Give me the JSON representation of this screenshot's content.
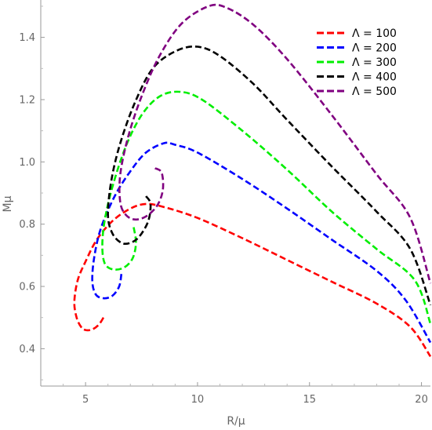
{
  "chart_data": {
    "type": "line",
    "title": "",
    "xlabel": "R/μ",
    "ylabel": "Mμ",
    "xlim": [
      3,
      20.4
    ],
    "ylim": [
      0.28,
      1.52
    ],
    "x_ticks": [
      5,
      10,
      15,
      20
    ],
    "y_ticks": [
      0.4,
      0.6,
      0.8,
      1.0,
      1.2,
      1.4
    ],
    "x_tick_labels": [
      "5",
      "10",
      "15",
      "20"
    ],
    "y_tick_labels": [
      "0.4",
      "0.6",
      "0.8",
      "1.0",
      "1.2",
      "1.4"
    ],
    "grid": false,
    "line_style": "dashed",
    "legend_position": "top-right",
    "series": [
      {
        "name": "Λ = 100",
        "color": "#ff0000",
        "points": [
          [
            5.8,
            0.5
          ],
          [
            5.6,
            0.478
          ],
          [
            5.3,
            0.462
          ],
          [
            5.0,
            0.46
          ],
          [
            4.8,
            0.47
          ],
          [
            4.6,
            0.5
          ],
          [
            4.5,
            0.55
          ],
          [
            4.65,
            0.62
          ],
          [
            5.0,
            0.68
          ],
          [
            5.5,
            0.75
          ],
          [
            6.2,
            0.81
          ],
          [
            7.0,
            0.85
          ],
          [
            7.7,
            0.865
          ],
          [
            8.5,
            0.855
          ],
          [
            10.0,
            0.82
          ],
          [
            12.0,
            0.755
          ],
          [
            14.0,
            0.685
          ],
          [
            16.0,
            0.615
          ],
          [
            18.0,
            0.545
          ],
          [
            19.5,
            0.47
          ],
          [
            20.4,
            0.375
          ]
        ]
      },
      {
        "name": "Λ = 200",
        "color": "#0000ff",
        "points": [
          [
            6.6,
            0.64
          ],
          [
            6.5,
            0.6
          ],
          [
            6.2,
            0.57
          ],
          [
            5.8,
            0.562
          ],
          [
            5.45,
            0.575
          ],
          [
            5.3,
            0.62
          ],
          [
            5.4,
            0.7
          ],
          [
            5.7,
            0.79
          ],
          [
            6.3,
            0.89
          ],
          [
            7.0,
            0.97
          ],
          [
            7.7,
            1.03
          ],
          [
            8.5,
            1.06
          ],
          [
            9.0,
            1.055
          ],
          [
            10.0,
            1.03
          ],
          [
            12.0,
            0.945
          ],
          [
            14.0,
            0.85
          ],
          [
            16.0,
            0.75
          ],
          [
            18.0,
            0.65
          ],
          [
            19.3,
            0.555
          ],
          [
            20.4,
            0.42
          ]
        ]
      },
      {
        "name": "Λ = 300",
        "color": "#00ee00",
        "points": [
          [
            7.15,
            0.79
          ],
          [
            7.25,
            0.74
          ],
          [
            7.1,
            0.69
          ],
          [
            6.7,
            0.66
          ],
          [
            6.2,
            0.655
          ],
          [
            5.85,
            0.675
          ],
          [
            5.75,
            0.73
          ],
          [
            5.85,
            0.81
          ],
          [
            6.2,
            0.92
          ],
          [
            6.8,
            1.05
          ],
          [
            7.5,
            1.15
          ],
          [
            8.3,
            1.21
          ],
          [
            9.2,
            1.225
          ],
          [
            10.2,
            1.2
          ],
          [
            12.0,
            1.1
          ],
          [
            14.0,
            0.975
          ],
          [
            16.0,
            0.84
          ],
          [
            18.0,
            0.72
          ],
          [
            19.7,
            0.62
          ],
          [
            20.4,
            0.48
          ]
        ]
      },
      {
        "name": "Λ = 400",
        "color": "#000000",
        "points": [
          [
            7.7,
            0.89
          ],
          [
            7.9,
            0.865
          ],
          [
            7.8,
            0.81
          ],
          [
            7.4,
            0.76
          ],
          [
            7.0,
            0.74
          ],
          [
            6.6,
            0.74
          ],
          [
            6.2,
            0.77
          ],
          [
            6.0,
            0.83
          ],
          [
            6.15,
            0.94
          ],
          [
            6.55,
            1.06
          ],
          [
            7.2,
            1.19
          ],
          [
            8.0,
            1.3
          ],
          [
            9.0,
            1.355
          ],
          [
            10.0,
            1.37
          ],
          [
            11.0,
            1.34
          ],
          [
            12.5,
            1.25
          ],
          [
            14.0,
            1.135
          ],
          [
            16.0,
            0.985
          ],
          [
            18.0,
            0.84
          ],
          [
            19.5,
            0.72
          ],
          [
            20.4,
            0.54
          ]
        ]
      },
      {
        "name": "Λ = 500",
        "color": "#800080",
        "points": [
          [
            8.1,
            0.98
          ],
          [
            8.4,
            0.965
          ],
          [
            8.45,
            0.91
          ],
          [
            8.2,
            0.86
          ],
          [
            7.7,
            0.825
          ],
          [
            7.2,
            0.815
          ],
          [
            6.8,
            0.83
          ],
          [
            6.55,
            0.87
          ],
          [
            6.55,
            0.96
          ],
          [
            6.9,
            1.08
          ],
          [
            7.5,
            1.21
          ],
          [
            8.3,
            1.34
          ],
          [
            9.3,
            1.445
          ],
          [
            10.5,
            1.5
          ],
          [
            11.3,
            1.495
          ],
          [
            12.5,
            1.44
          ],
          [
            14.0,
            1.33
          ],
          [
            16.0,
            1.15
          ],
          [
            18.0,
            0.96
          ],
          [
            19.5,
            0.82
          ],
          [
            20.4,
            0.61
          ]
        ]
      }
    ]
  }
}
